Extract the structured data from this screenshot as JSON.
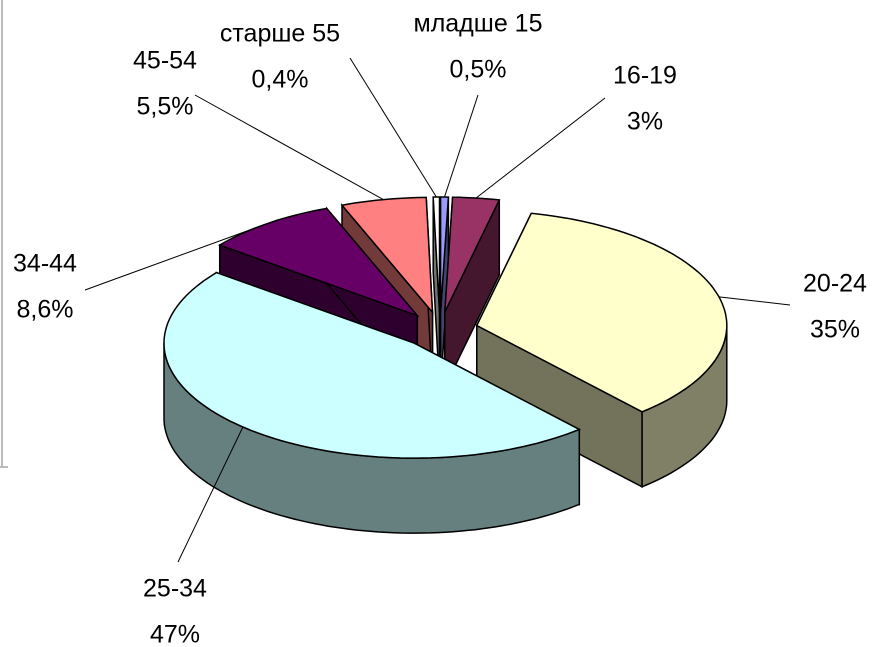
{
  "chart_data": {
    "type": "pie3d",
    "categories": [
      "младше 15",
      "16-19",
      "20-24",
      "25-34",
      "34-44",
      "45-54",
      "старше 55"
    ],
    "values": [
      0.5,
      3,
      35,
      47,
      8.6,
      5.5,
      0.4
    ],
    "value_labels": [
      "0,5%",
      "3%",
      "35%",
      "47%",
      "8,6%",
      "5,5%",
      "0,4%"
    ],
    "colors": [
      "#9999ff",
      "#993366",
      "#ffffcc",
      "#ccffff",
      "#660066",
      "#ff8080",
      "#ffffff"
    ]
  }
}
